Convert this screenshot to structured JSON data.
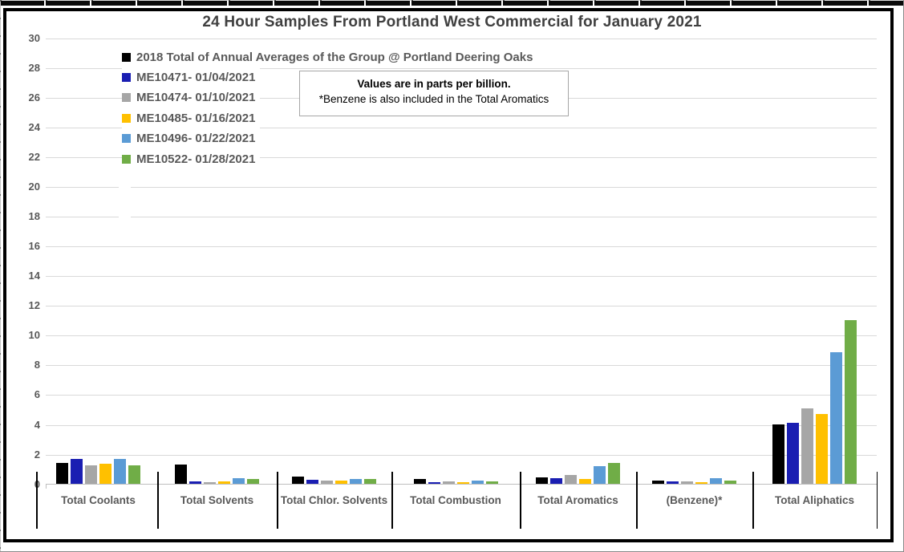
{
  "chart_data": {
    "type": "bar",
    "title": "24 Hour Samples From Portland West Commercial for January 2021",
    "categories": [
      "Total Coolants",
      "Total Solvents",
      "Total Chlor. Solvents",
      "Total Combustion",
      "Total Aromatics",
      "(Benzene)*",
      "Total Aliphatics"
    ],
    "series": [
      {
        "name": "2018 Total of Annual Averages of the Group @ Portland Deering Oaks",
        "color": "#000000",
        "values": [
          1.4,
          1.3,
          0.5,
          0.3,
          0.45,
          0.2,
          4.0
        ]
      },
      {
        "name": "ME10471- 01/04/2021",
        "color": "#1A1EB2",
        "values": [
          1.7,
          0.15,
          0.25,
          0.1,
          0.4,
          0.15,
          4.1
        ]
      },
      {
        "name": "ME10474- 01/10/2021",
        "color": "#A6A6A6",
        "values": [
          1.25,
          0.1,
          0.2,
          0.15,
          0.6,
          0.15,
          5.1
        ]
      },
      {
        "name": "ME10485- 01/16/2021",
        "color": "#FFC000",
        "values": [
          1.35,
          0.15,
          0.2,
          0.1,
          0.3,
          0.1,
          4.7
        ]
      },
      {
        "name": "ME10496- 01/22/2021",
        "color": "#5B9BD5",
        "values": [
          1.7,
          0.4,
          0.3,
          0.2,
          1.2,
          0.4,
          8.85
        ]
      },
      {
        "name": "ME10522- 01/28/2021",
        "color": "#70AD47",
        "values": [
          1.25,
          0.35,
          0.35,
          0.15,
          1.4,
          0.2,
          11.05
        ]
      }
    ],
    "xlabel": "",
    "ylabel": "",
    "ylim": [
      0,
      30
    ],
    "ytick_step": 2,
    "grid": true,
    "legend_position": "upper-left",
    "units_note": "parts per billion",
    "annotation": {
      "line1": "Values are in parts per billion.",
      "line2": "*Benzene is also included in the Total Aromatics"
    },
    "colors": {
      "gridline": "#D9D9D9",
      "axis_line": "#BFBFBF",
      "label_text": "#595959",
      "title_text": "#404040"
    }
  }
}
